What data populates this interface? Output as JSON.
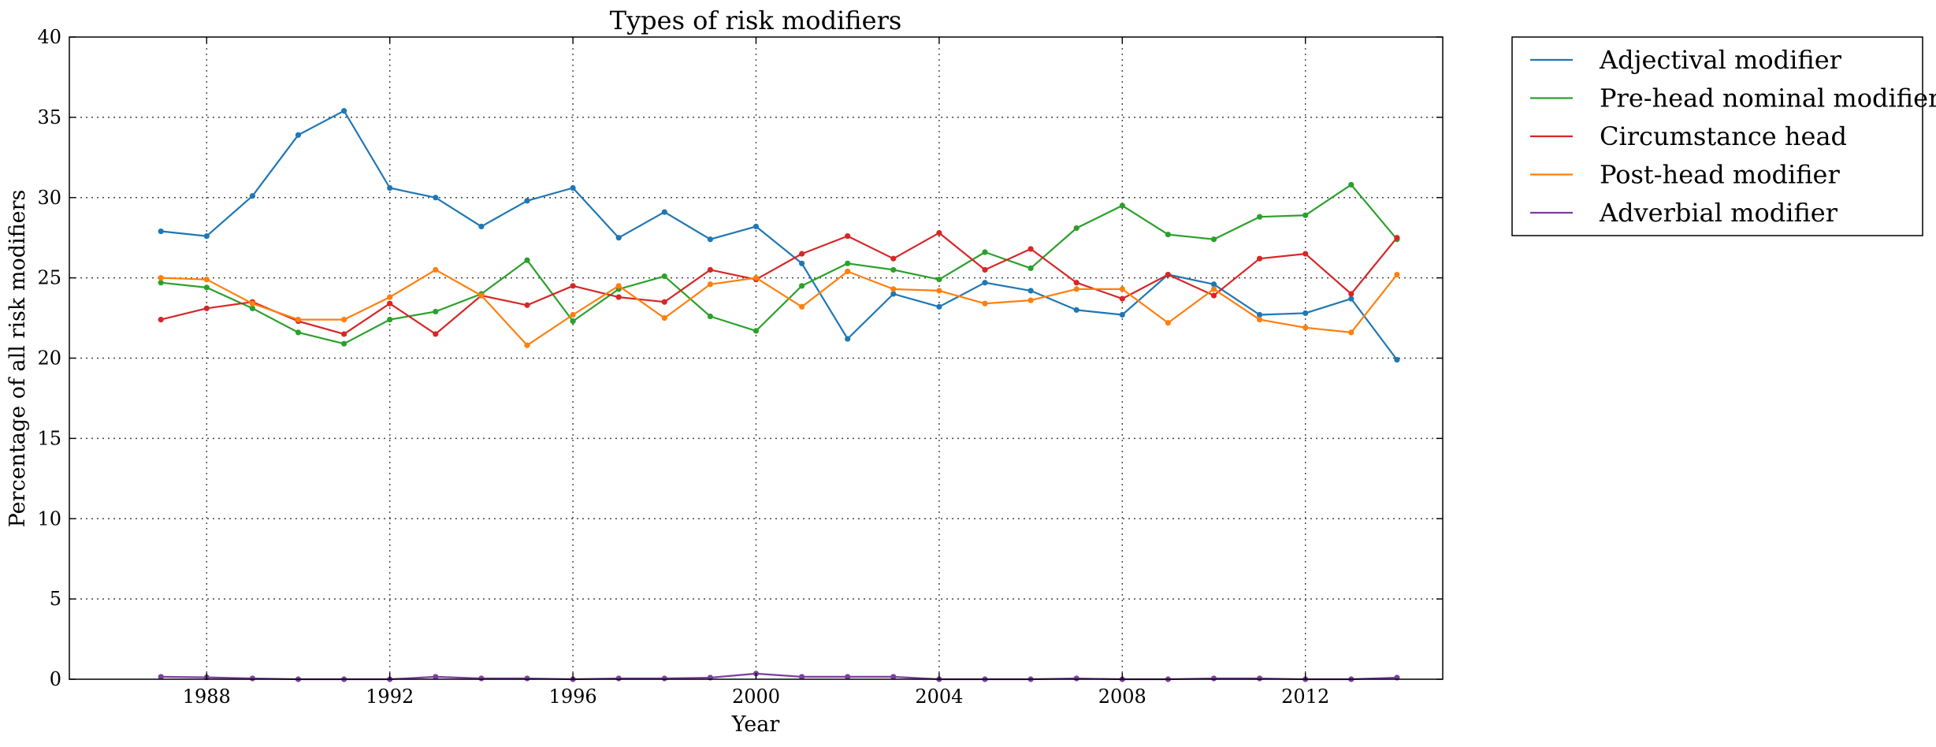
{
  "chart_data": {
    "type": "line",
    "title": "Types of risk modifiers",
    "xlabel": "Year",
    "ylabel": "Percentage of all risk modifiers",
    "xlim": [
      1985,
      2015
    ],
    "ylim": [
      0,
      40
    ],
    "xticks": [
      1988,
      1992,
      1996,
      2000,
      2004,
      2008,
      2012
    ],
    "yticks": [
      0,
      5,
      10,
      15,
      20,
      25,
      30,
      35,
      40
    ],
    "grid": true,
    "legend_position": "outside-right-top",
    "x": [
      1987,
      1988,
      1989,
      1990,
      1991,
      1992,
      1993,
      1994,
      1995,
      1996,
      1997,
      1998,
      1999,
      2000,
      2001,
      2002,
      2003,
      2004,
      2005,
      2006,
      2007,
      2008,
      2009,
      2010,
      2011,
      2012,
      2013,
      2014
    ],
    "series": [
      {
        "name": "Adjectival modifier",
        "color": "#1f77b4",
        "values": [
          27.9,
          27.6,
          30.1,
          33.9,
          35.4,
          30.6,
          30.0,
          28.2,
          29.8,
          30.6,
          27.5,
          29.1,
          27.4,
          28.2,
          25.9,
          21.2,
          24.0,
          23.2,
          24.7,
          24.2,
          23.0,
          22.7,
          25.2,
          24.6,
          22.7,
          22.8,
          23.7,
          19.9
        ]
      },
      {
        "name": "Pre-head nominal modifier",
        "color": "#2ca02c",
        "values": [
          24.7,
          24.4,
          23.1,
          21.6,
          20.9,
          22.4,
          22.9,
          24.0,
          26.1,
          22.3,
          24.3,
          25.1,
          22.6,
          21.7,
          24.5,
          25.9,
          25.5,
          24.9,
          26.6,
          25.6,
          28.1,
          29.5,
          27.7,
          27.4,
          28.8,
          28.9,
          30.8,
          27.4
        ]
      },
      {
        "name": "Circumstance head",
        "color": "#d62728",
        "values": [
          22.4,
          23.1,
          23.5,
          22.3,
          21.5,
          23.4,
          21.5,
          23.9,
          23.3,
          24.5,
          23.8,
          23.5,
          25.5,
          24.9,
          26.5,
          27.6,
          26.2,
          27.8,
          25.5,
          26.8,
          24.7,
          23.7,
          25.2,
          23.9,
          26.2,
          26.5,
          24.0,
          27.5
        ]
      },
      {
        "name": "Post-head modifier",
        "color": "#ff7f0e",
        "values": [
          25.0,
          24.9,
          23.4,
          22.4,
          22.4,
          23.8,
          25.5,
          23.9,
          20.8,
          22.7,
          24.5,
          22.5,
          24.6,
          25.0,
          23.2,
          25.4,
          24.3,
          24.2,
          23.4,
          23.6,
          24.3,
          24.3,
          22.2,
          24.3,
          22.4,
          21.9,
          21.6,
          25.2
        ]
      },
      {
        "name": "Adverbial modifier",
        "color": "#7b3fa0",
        "values": [
          0.15,
          0.12,
          0.05,
          0.0,
          0.0,
          0.0,
          0.15,
          0.05,
          0.05,
          0.0,
          0.05,
          0.05,
          0.1,
          0.35,
          0.15,
          0.15,
          0.15,
          0.0,
          0.0,
          0.0,
          0.05,
          0.0,
          0.0,
          0.05,
          0.05,
          0.0,
          0.0,
          0.1
        ]
      }
    ]
  }
}
